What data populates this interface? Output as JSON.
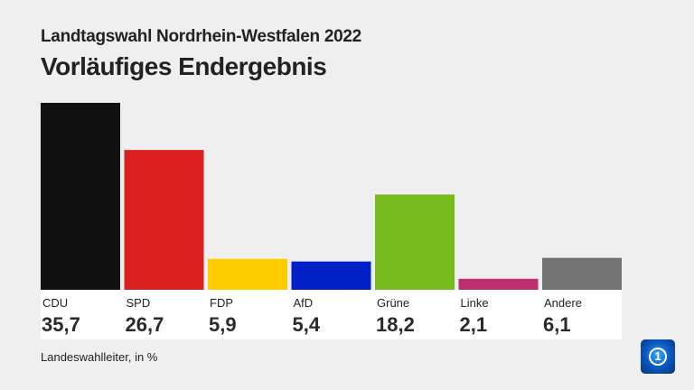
{
  "header": {
    "subtitle": "Landtagswahl Nordrhein-Westfalen 2022",
    "title": "Vorläufiges Endergebnis"
  },
  "source": "Landeswahlleiter, in %",
  "chart_data": {
    "type": "bar",
    "categories": [
      "CDU",
      "SPD",
      "FDP",
      "AfD",
      "Grüne",
      "Linke",
      "Andere"
    ],
    "values": [
      35.7,
      26.7,
      5.9,
      5.4,
      18.2,
      2.1,
      6.1
    ],
    "value_labels": [
      "35,7",
      "26,7",
      "5,9",
      "5,4",
      "18,2",
      "2,1",
      "6,1"
    ],
    "colors": [
      "#111111",
      "#d91f1f",
      "#ffcc00",
      "#0021c8",
      "#78bb1c",
      "#be2f71",
      "#737373"
    ],
    "unit": "%",
    "grid": false
  }
}
